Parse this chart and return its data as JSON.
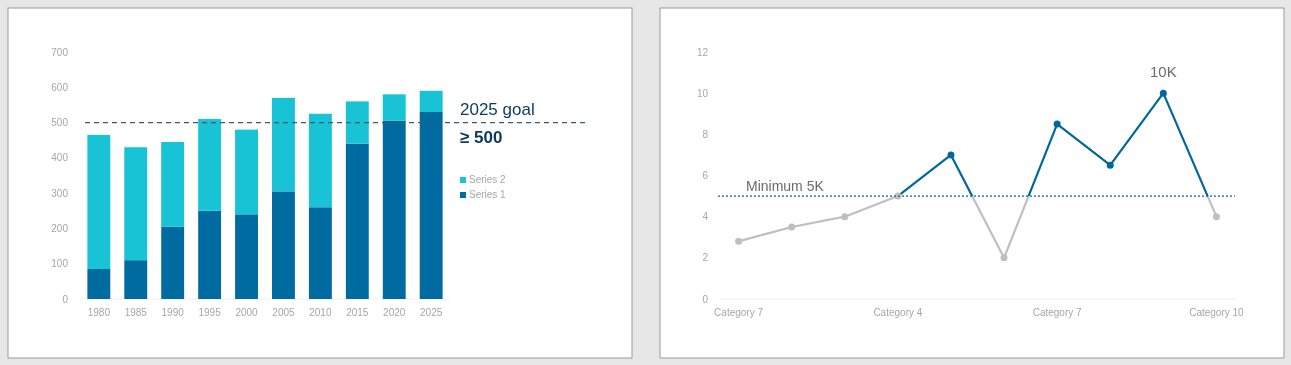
{
  "chart_data": [
    {
      "type": "bar",
      "stacked": true,
      "categories": [
        "1980",
        "1985",
        "1990",
        "1995",
        "2000",
        "2005",
        "2010",
        "2015",
        "2020",
        "2025"
      ],
      "series": [
        {
          "name": "Series 1",
          "color": "#006ba1",
          "values": [
            85,
            110,
            205,
            250,
            240,
            305,
            260,
            440,
            505,
            530
          ]
        },
        {
          "name": "Series 2",
          "color": "#17c3d4",
          "values": [
            380,
            320,
            240,
            260,
            240,
            265,
            265,
            120,
            75,
            60
          ]
        }
      ],
      "ylim": [
        0,
        700
      ],
      "yticks": [
        0,
        100,
        200,
        300,
        400,
        500,
        600,
        700
      ],
      "legend": "right",
      "ref_lines": [
        {
          "axis": "y",
          "value": 500,
          "label": "2025 goal",
          "color": "#3d5a73",
          "line_style": "dashed"
        }
      ],
      "annotations": [
        "≥ 500"
      ]
    },
    {
      "type": "line",
      "categories": [
        "Category 7",
        null,
        null,
        "Category 4",
        null,
        null,
        "Category 7",
        null,
        null,
        "Category 10"
      ],
      "series": [
        {
          "color": "#bfbfbf",
          "values": [
            2.8,
            3.5,
            4,
            5,
            7,
            2,
            8.5,
            6.5,
            10,
            4
          ]
        }
      ],
      "ylim": [
        0,
        12
      ],
      "yticks": [
        0,
        2,
        4,
        6,
        8,
        10,
        12
      ],
      "marker": "circle",
      "line_style": "solid",
      "ref_lines": [
        {
          "axis": "y",
          "value": 5,
          "label": "Minimum 5K",
          "color": "#00679c",
          "line_style": "dotted"
        }
      ],
      "annotations": [
        {
          "text": "10K",
          "y": 10
        }
      ]
    }
  ]
}
